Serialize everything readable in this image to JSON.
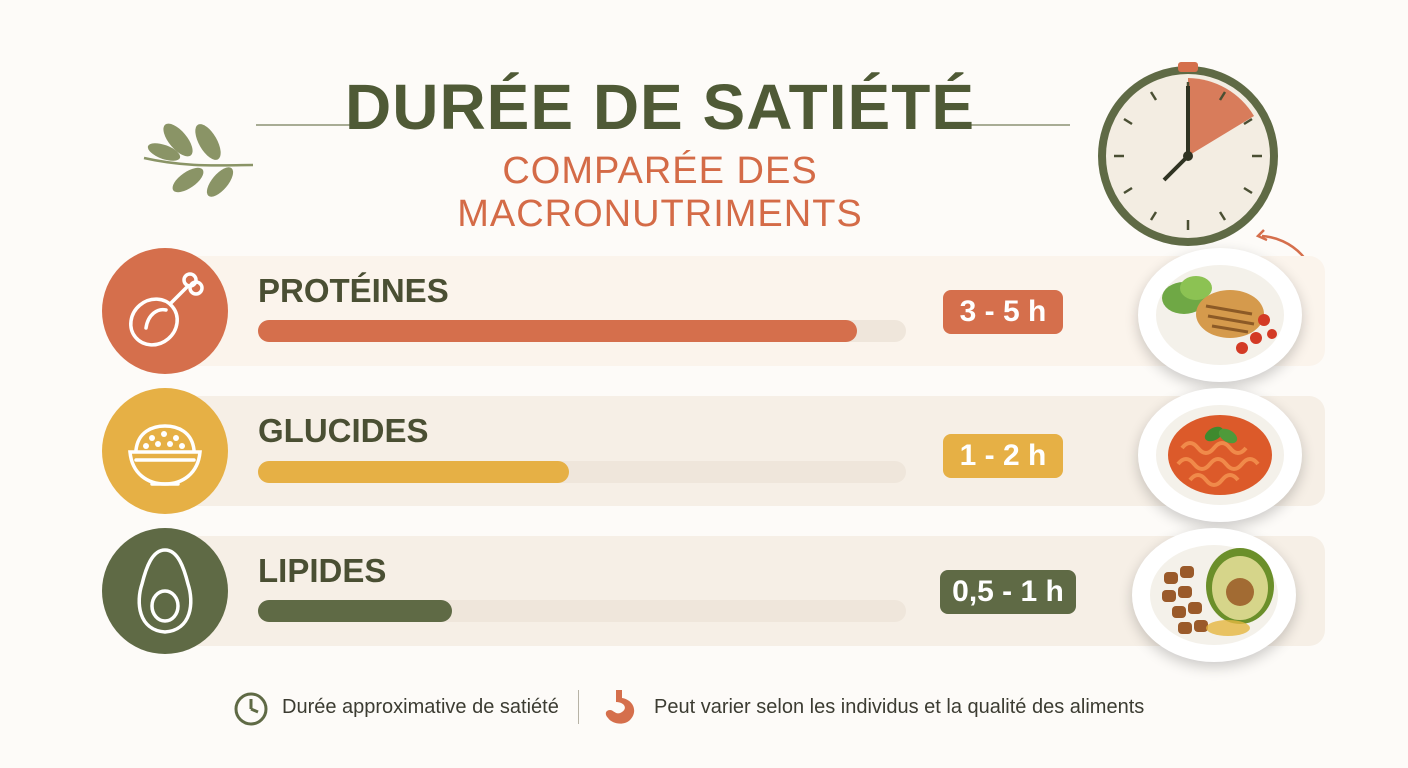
{
  "header": {
    "title": "DURÉE DE SATIÉTÉ",
    "subtitle": "COMPARÉE DES MACRONUTRIMENTS"
  },
  "colors": {
    "olive": "#5f6a45",
    "terracotta": "#d56f4c",
    "mustard": "#e6b045",
    "title": "#4f5a36",
    "subtitle": "#d46b47"
  },
  "chart_data": {
    "type": "bar",
    "orientation": "horizontal",
    "categories": [
      "PROTÉINES",
      "GLUCIDES",
      "LIPIDES"
    ],
    "values": [
      0.925,
      0.48,
      0.3
    ],
    "value_labels": [
      "3 - 5 h",
      "1 - 2 h",
      "0,5 - 1 h"
    ],
    "value_scale": "fraction of track filled",
    "colors": [
      "#d56f4c",
      "#e6b045",
      "#5f6a45"
    ],
    "icons": [
      "chicken-leg-icon",
      "rice-bowl-icon",
      "avocado-icon"
    ],
    "images": [
      "grilled-chicken-salad-plate",
      "pasta-tomato-sauce-plate",
      "avocado-nuts-plate"
    ],
    "xlim": [
      0,
      1
    ],
    "grid": false,
    "legend": "none"
  },
  "footer": {
    "note_1": "Durée approximative de satiété",
    "note_2": "Peut varier selon les individus et la qualité des aliments",
    "icons": [
      "clock-icon",
      "stomach-icon"
    ]
  }
}
